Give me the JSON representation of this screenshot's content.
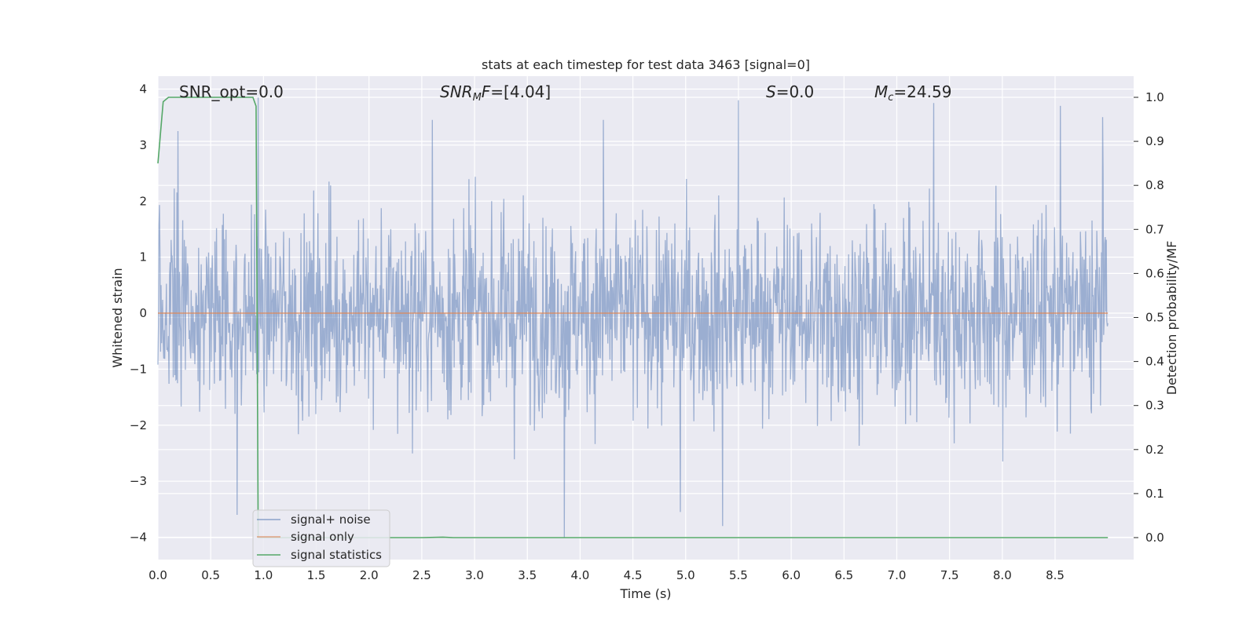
{
  "chart_data": {
    "type": "line",
    "title": "stats at each timestep for test data 3463 [signal=0]",
    "xlabel": "Time (s)",
    "ylabel": "Whitened strain",
    "ylabel_right": "Detection probability/MF",
    "xlim": [
      0.0,
      9.0
    ],
    "ylim": [
      -4.3,
      4.2
    ],
    "ylim_right": [
      -0.05,
      1.045
    ],
    "x_ticks": [
      "0.0",
      "0.5",
      "1.0",
      "1.5",
      "2.0",
      "2.5",
      "3.0",
      "3.5",
      "4.0",
      "4.5",
      "5.0",
      "5.5",
      "6.0",
      "6.5",
      "7.0",
      "7.5",
      "8.0",
      "8.5"
    ],
    "x_tick_values": [
      0.0,
      0.5,
      1.0,
      1.5,
      2.0,
      2.5,
      3.0,
      3.5,
      4.0,
      4.5,
      5.0,
      5.5,
      6.0,
      6.5,
      7.0,
      7.5,
      8.0,
      8.5
    ],
    "y_ticks": [
      "4",
      "3",
      "2",
      "1",
      "0",
      "−1",
      "−2",
      "−3",
      "−4"
    ],
    "y_tick_values": [
      4,
      3,
      2,
      1,
      0,
      -1,
      -2,
      -3,
      -4
    ],
    "y_right_ticks": [
      "1.0",
      "0.9",
      "0.8",
      "0.7",
      "0.6",
      "0.5",
      "0.4",
      "0.3",
      "0.2",
      "0.1",
      "0.0"
    ],
    "y_right_tick_values": [
      1.0,
      0.9,
      0.8,
      0.7,
      0.6,
      0.5,
      0.4,
      0.3,
      0.2,
      0.1,
      0.0
    ],
    "grid": true,
    "legend_position": "bottom-left",
    "legend": [
      "signal+ noise",
      "signal only",
      "signal statistics"
    ],
    "annotations": {
      "snr_opt": "SNR_opt=0.0",
      "snr_mf_italic": "SNR",
      "snr_mf_sub": "M",
      "snr_mf_italic2": "F",
      "snr_mf_value": "=[4.04]",
      "s_italic": "S",
      "s_value": "=0.0",
      "mc_italic": "M",
      "mc_sub": "c",
      "mc_value": "=24.59"
    },
    "series": [
      {
        "name": "signal+ noise",
        "axis": "left",
        "color": "#4c72b0",
        "opacity": 0.5,
        "sampling": "noise trace, 8192 samples over 9 s, envelope approx ±2.5 with spikes to ±4",
        "peaks": [
          {
            "x": 0.95,
            "y": 3.85
          },
          {
            "x": 0.19,
            "y": 3.25
          },
          {
            "x": 2.6,
            "y": 3.45
          },
          {
            "x": 4.22,
            "y": 3.45
          },
          {
            "x": 5.5,
            "y": 3.8
          },
          {
            "x": 7.35,
            "y": 3.75
          },
          {
            "x": 8.55,
            "y": 3.7
          },
          {
            "x": 8.95,
            "y": 3.5
          },
          {
            "x": 3.85,
            "y": -4.0
          },
          {
            "x": 0.75,
            "y": -3.6
          },
          {
            "x": 5.35,
            "y": -3.8
          },
          {
            "x": 4.95,
            "y": -3.55
          }
        ]
      },
      {
        "name": "signal only",
        "axis": "left",
        "color": "#dd8452",
        "x": [
          0.0,
          9.0
        ],
        "y": [
          0.0,
          0.0
        ]
      },
      {
        "name": "signal statistics",
        "axis": "right",
        "color": "#55a868",
        "x": [
          0.0,
          0.05,
          0.1,
          0.5,
          0.9,
          0.93,
          0.95,
          1.0,
          2.5,
          2.7,
          2.8,
          9.0
        ],
        "y": [
          0.85,
          0.99,
          1.0,
          1.0,
          1.0,
          0.98,
          0.0,
          0.0,
          0.0,
          0.001,
          0.0,
          0.0
        ]
      }
    ]
  }
}
